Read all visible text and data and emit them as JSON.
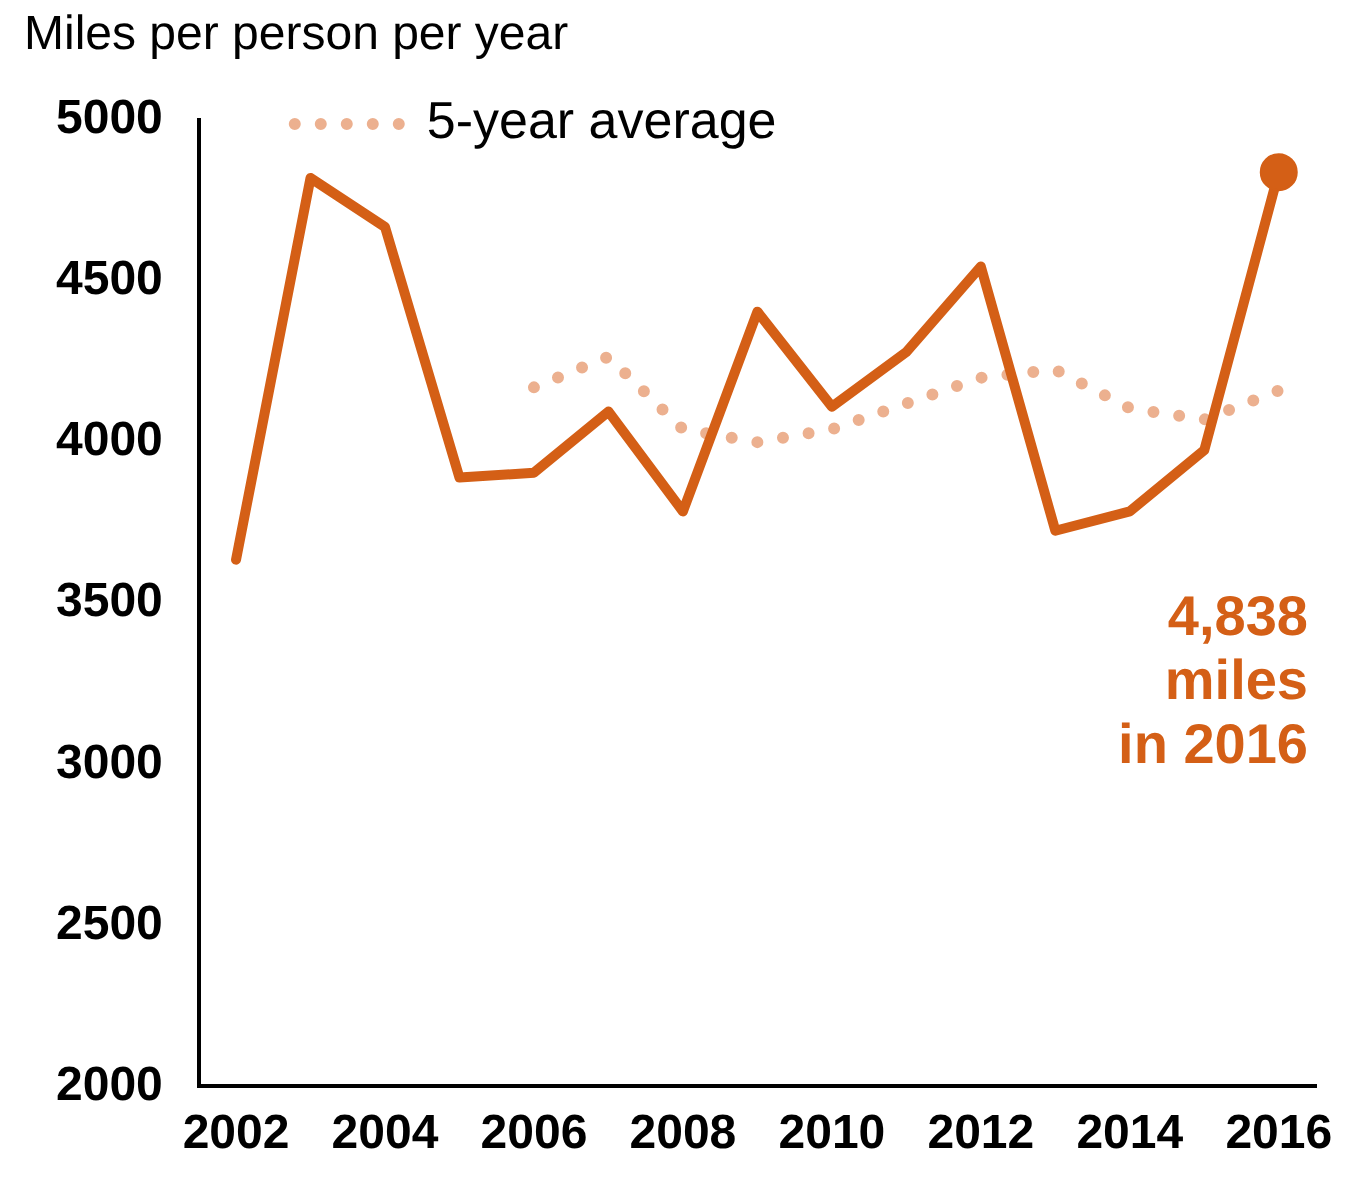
{
  "chart_data": {
    "type": "line",
    "ylabel": "Miles per person per year",
    "categories": [
      "2002",
      null,
      "2004",
      null,
      "2006",
      null,
      "2008",
      null,
      "2010",
      null,
      "2012",
      null,
      "2014",
      null,
      "2016"
    ],
    "series": [
      {
        "color": "#d45f16",
        "line_style": "solid",
        "values": [
          3635,
          4820,
          4668,
          3890,
          3905,
          4095,
          3785,
          4405,
          4110,
          4280,
          4545,
          3725,
          3785,
          3975,
          4838
        ]
      },
      {
        "name": "5-year average",
        "color": "#ecb08f",
        "line_style": "dotted",
        "values": [
          null,
          null,
          null,
          null,
          4170,
          4265,
          4040,
          4000,
          4040,
          4120,
          4200,
          4225,
          4105,
          4070,
          4160
        ]
      },
      {
        "type": "scatter",
        "color": "#d45f16",
        "marker": "circle",
        "values": [
          null,
          null,
          null,
          null,
          null,
          null,
          null,
          null,
          null,
          null,
          null,
          null,
          null,
          null,
          4838
        ]
      }
    ],
    "annotations": [
      "4,838\nmiles\nin 2016"
    ],
    "ylim": [
      2000,
      5000
    ],
    "yticks": [
      2000,
      2500,
      3000,
      3500,
      4000,
      4500,
      5000
    ],
    "grid": false,
    "legend": "top left"
  }
}
